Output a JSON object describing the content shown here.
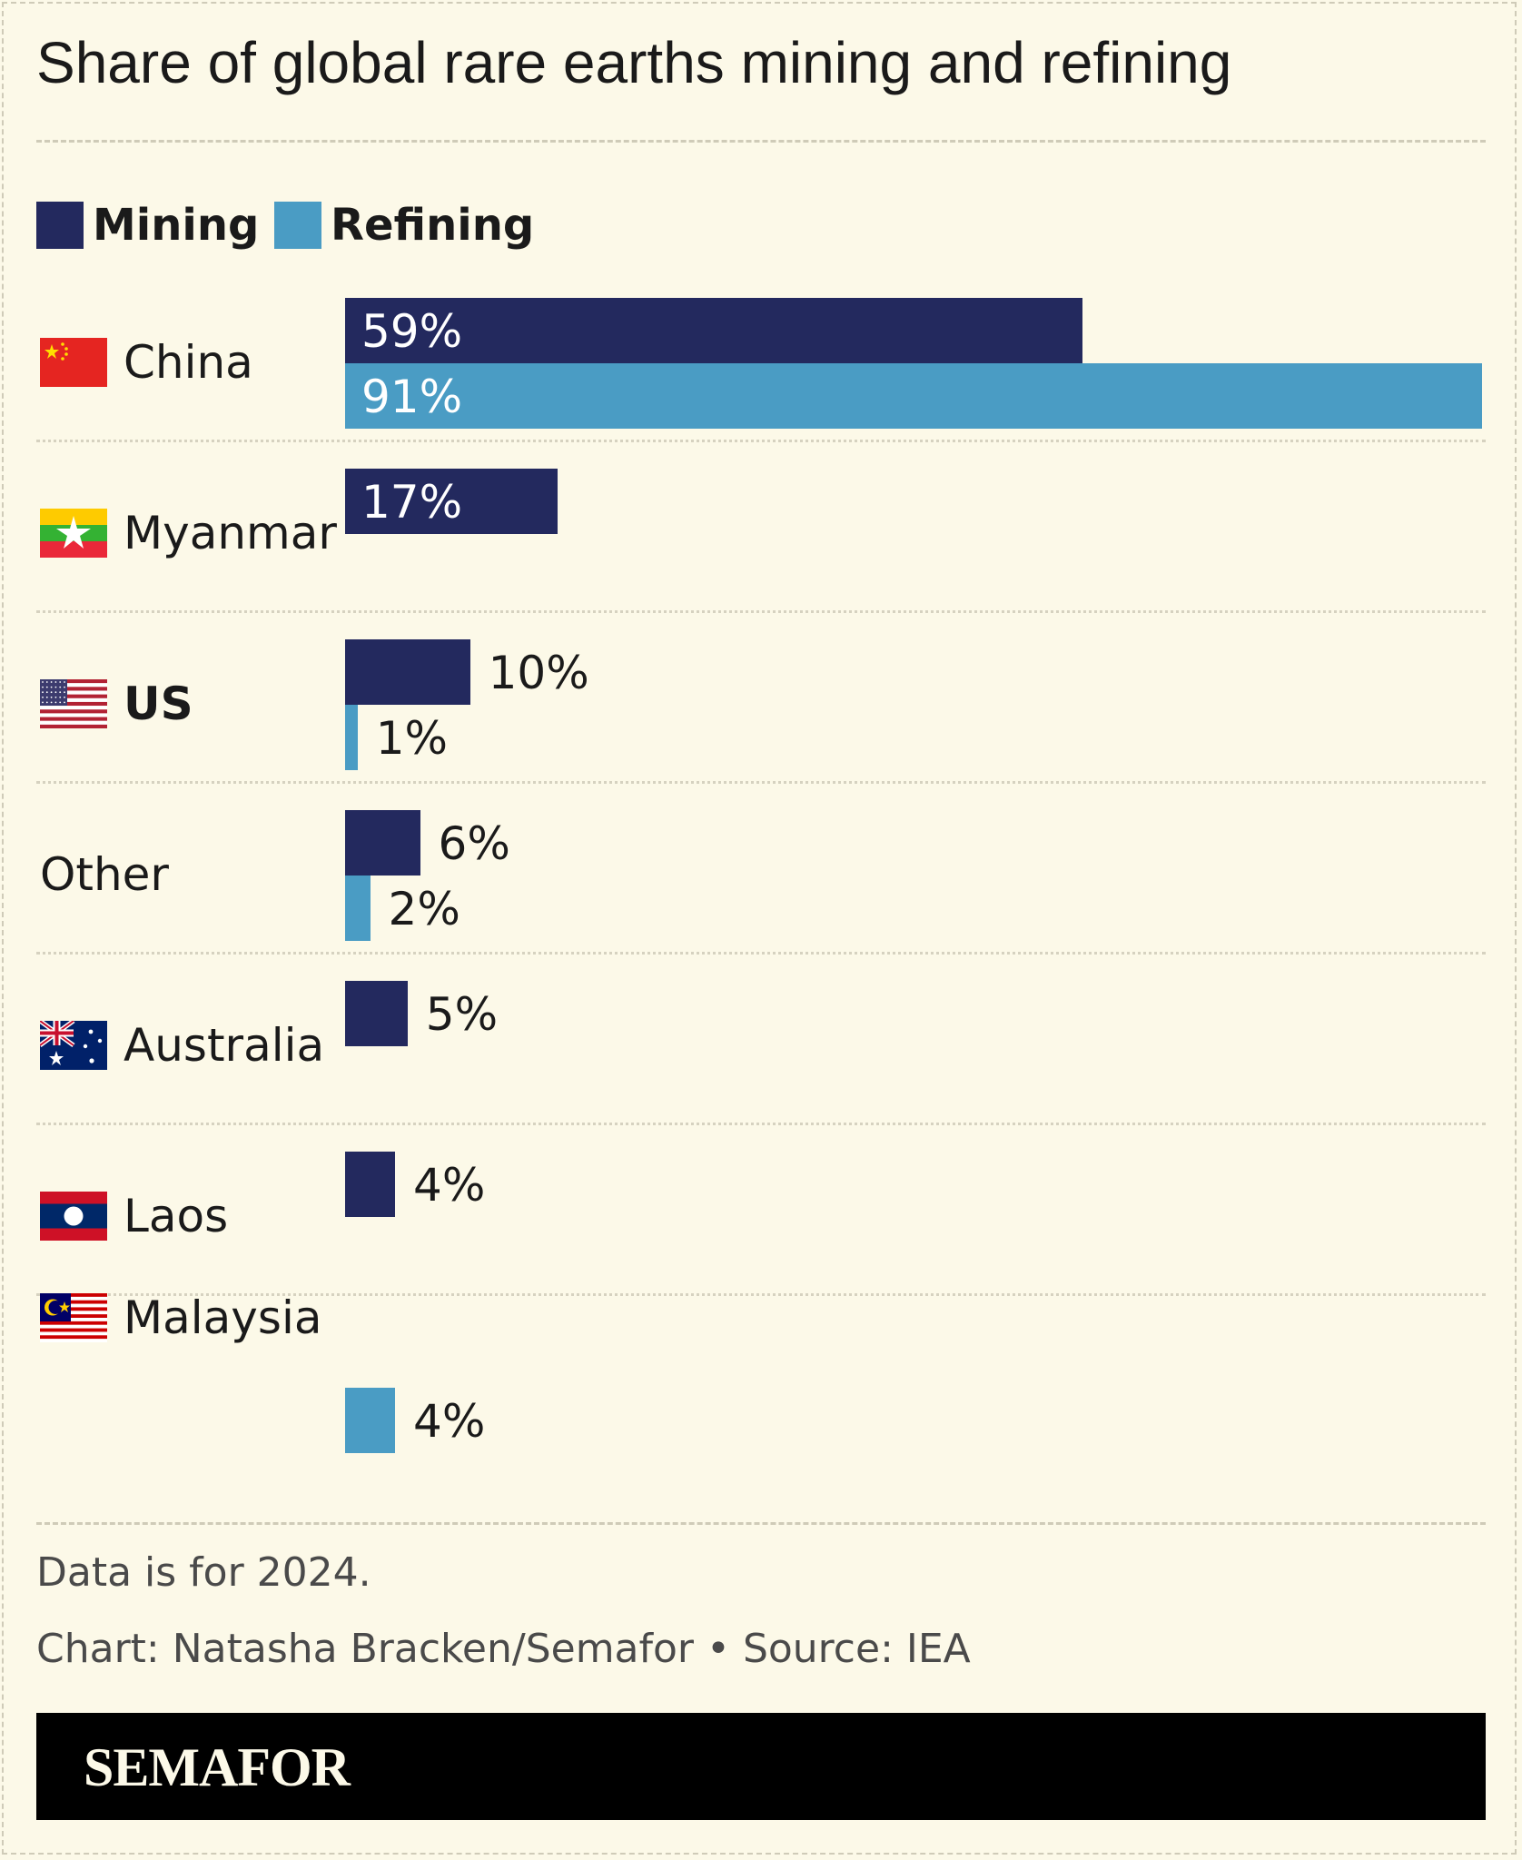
{
  "colors": {
    "mining": "#23295e",
    "refining": "#4a9cc4",
    "background": "#fcf9e8"
  },
  "chart_data": {
    "type": "bar",
    "orientation": "horizontal",
    "title": "Share of global rare earths mining and refining",
    "unit": "%",
    "xlim": [
      0,
      91
    ],
    "grid": false,
    "legend_position": "top-left",
    "legend": [
      {
        "key": "mining",
        "label": "Mining"
      },
      {
        "key": "refining",
        "label": "Refining"
      }
    ],
    "categories": [
      {
        "name": "China",
        "flag": "china-flag",
        "bold": false,
        "mining": 59,
        "mining_label": "59%",
        "refining": 91,
        "refining_label": "91%"
      },
      {
        "name": "Myanmar",
        "flag": "myanmar-flag",
        "bold": false,
        "mining": 17,
        "mining_label": "17%",
        "refining": null,
        "refining_label": null
      },
      {
        "name": "US",
        "flag": "us-flag",
        "bold": true,
        "mining": 10,
        "mining_label": "10%",
        "refining": 1,
        "refining_label": "1%"
      },
      {
        "name": "Other",
        "flag": null,
        "bold": false,
        "mining": 6,
        "mining_label": "6%",
        "refining": 2,
        "refining_label": "2%"
      },
      {
        "name": "Australia",
        "flag": "australia-flag",
        "bold": false,
        "mining": 5,
        "mining_label": "5%",
        "refining": null,
        "refining_label": null
      },
      {
        "name": "Laos",
        "flag": "laos-flag",
        "bold": false,
        "mining": 4,
        "mining_label": "4%",
        "refining": null,
        "refining_label": null
      },
      {
        "name": "Malaysia",
        "flag": "malaysia-flag",
        "bold": false,
        "mining": null,
        "mining_label": null,
        "refining": 4,
        "refining_label": "4%"
      }
    ]
  },
  "footer": {
    "note": "Data is for 2024.",
    "credit": "Chart: Natasha Bracken/Semafor • Source: IEA",
    "logo": "SEMAFOR"
  }
}
